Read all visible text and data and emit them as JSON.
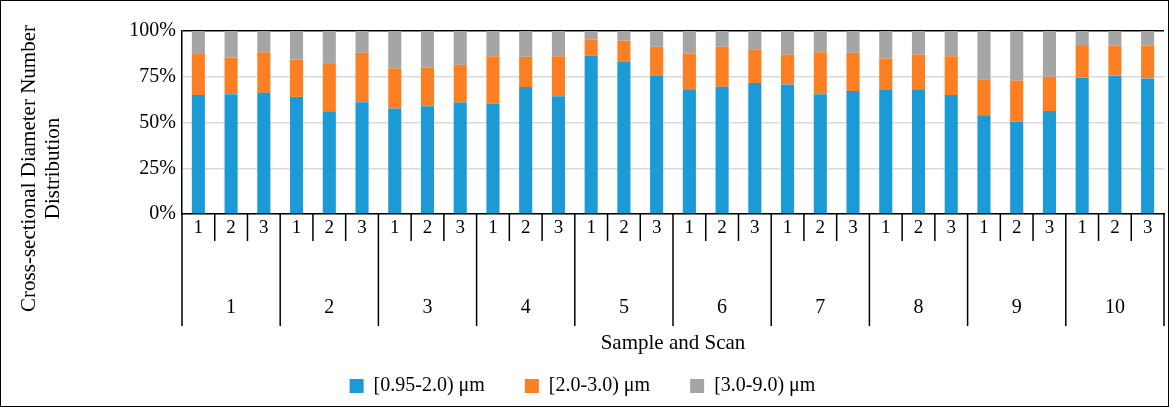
{
  "chart_data": {
    "type": "bar",
    "stacked": true,
    "xlabel": "Sample and Scan",
    "ylabel": "Cross-sectional Diameter Number Distribution",
    "categories": [
      "1",
      "2",
      "3",
      "1",
      "2",
      "3",
      "1",
      "2",
      "3",
      "1",
      "2",
      "3",
      "1",
      "2",
      "3",
      "1",
      "2",
      "3",
      "1",
      "2",
      "3",
      "1",
      "2",
      "3",
      "1",
      "2",
      "3",
      "1",
      "2",
      "3"
    ],
    "annotations": [
      "1",
      "2",
      "3",
      "4",
      "5",
      "6",
      "7",
      "8",
      "9",
      "10"
    ],
    "ylim": [
      0,
      100
    ],
    "yticks": [
      {
        "value": 0,
        "label": "0%"
      },
      {
        "value": 25,
        "label": "25%"
      },
      {
        "value": 50,
        "label": "50%"
      },
      {
        "value": 75,
        "label": "75%"
      },
      {
        "value": 100,
        "label": "100%"
      }
    ],
    "grid": "y",
    "legend": "bottom",
    "series": [
      {
        "name": "[0.95-2.0) μm",
        "color": "#1b9ad6",
        "values": [
          65.0,
          65.5,
          66.2,
          64.0,
          56.1,
          61.1,
          57.6,
          58.9,
          60.9,
          60.4,
          69.4,
          64.4,
          86.4,
          83.1,
          75.4,
          67.7,
          69.5,
          71.6,
          70.8,
          65.5,
          67.2,
          67.7,
          67.7,
          65.0,
          53.9,
          50.6,
          56.3,
          74.5,
          75.6,
          74.1
        ]
      },
      {
        "name": "[2.0-3.0) μm",
        "color": "#fd7f23",
        "values": [
          22.9,
          20.0,
          22.2,
          20.4,
          26.3,
          27.0,
          22.0,
          21.1,
          20.6,
          25.8,
          16.5,
          21.8,
          9.0,
          11.6,
          16.0,
          20.0,
          21.9,
          18.1,
          16.4,
          22.9,
          20.9,
          17.3,
          19.5,
          21.2,
          19.7,
          22.4,
          18.7,
          17.8,
          16.5,
          18.0
        ]
      },
      {
        "name": "[3.0-9.0) μm",
        "color": "#a5a5a5",
        "values": [
          12.1,
          14.5,
          11.6,
          15.6,
          17.6,
          11.9,
          20.4,
          20.0,
          18.5,
          13.8,
          14.1,
          13.8,
          4.6,
          5.3,
          8.6,
          12.3,
          8.6,
          10.3,
          12.8,
          11.6,
          11.9,
          15.0,
          12.8,
          13.8,
          26.4,
          27.0,
          25.0,
          7.7,
          7.9,
          7.9
        ]
      }
    ]
  }
}
